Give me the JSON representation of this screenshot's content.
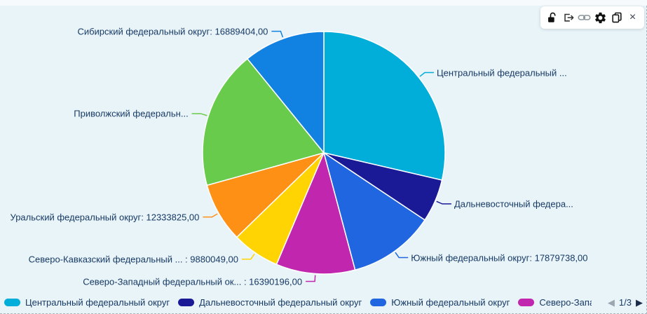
{
  "toolbar": {
    "icons": [
      "unlock-icon",
      "export-icon",
      "link-icon",
      "gear-icon",
      "copy-icon",
      "close-icon"
    ]
  },
  "chart_data": {
    "type": "pie",
    "title": "",
    "legend_position": "bottom",
    "start_angle_deg": 0,
    "direction": "clockwise",
    "value_format": "number with ,00 decimals",
    "slices": [
      {
        "name": "Центральный федеральный округ",
        "display_label": "Центральный федеральный ...",
        "value": 44500000,
        "value_estimated_from_angle": true,
        "color": "#00aed9"
      },
      {
        "name": "Дальневосточный федеральный округ",
        "display_label": "Дальневосточный федера...",
        "value": 8900000,
        "value_estimated_from_angle": true,
        "color": "#1a1a96"
      },
      {
        "name": "Южный федеральный округ",
        "display_label": "Южный федеральный округ: 17879738,00",
        "value": 17879738,
        "value_estimated_from_angle": false,
        "color": "#1f66e0"
      },
      {
        "name": "Северо-Западный федеральный округ",
        "display_label": "Северо-Западный федеральный ок... : 16390196,00",
        "value": 16390196,
        "value_estimated_from_angle": false,
        "color": "#c127ae"
      },
      {
        "name": "Северо-Кавказский федеральный округ",
        "display_label": "Северо-Кавказский федеральный ... : 9880049,00",
        "value": 9880049,
        "value_estimated_from_angle": false,
        "color": "#ffd402"
      },
      {
        "name": "Уральский федеральный округ",
        "display_label": "Уральский федеральный округ: 12333825,00",
        "value": 12333825,
        "value_estimated_from_angle": false,
        "color": "#fe9015"
      },
      {
        "name": "Приволжский федеральный округ",
        "display_label": "Приволжский федеральн...",
        "value": 28700000,
        "value_estimated_from_angle": true,
        "color": "#68cb4c"
      },
      {
        "name": "Сибирский федеральный округ",
        "display_label": "Сибирский федеральный округ: 16889404,00",
        "value": 16889404,
        "value_estimated_from_angle": false,
        "color": "#1181e2"
      }
    ]
  },
  "legend": {
    "items": [
      {
        "label": "Центральный федеральный округ",
        "color": "#00aed9"
      },
      {
        "label": "Дальневосточный федеральный округ",
        "color": "#1a1a96"
      },
      {
        "label": "Южный федеральный округ",
        "color": "#1f66e0"
      },
      {
        "label": "Северо-Западн",
        "color": "#c127ae"
      }
    ],
    "pagination": {
      "current": "1/3"
    }
  },
  "colors": {
    "widget_background": "#e9f4f9",
    "label_text": "#173a64",
    "toolbar_background": "#ffffff"
  }
}
